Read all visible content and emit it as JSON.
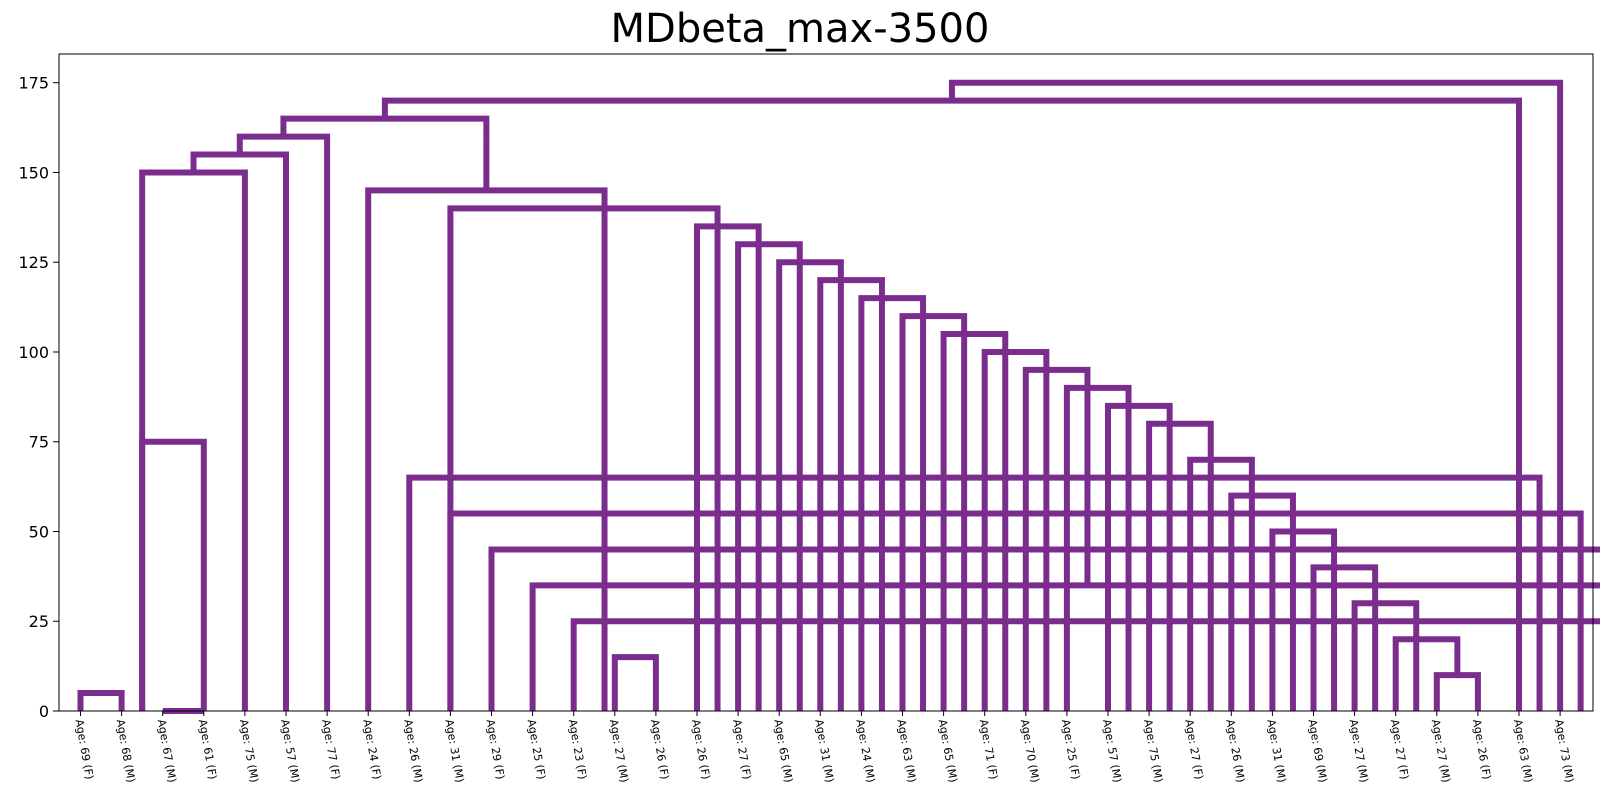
{
  "chart_data": {
    "type": "dendrogram",
    "title": "MDbeta_max-3500",
    "xlabel": "",
    "ylabel": "",
    "ylim": [
      0,
      183
    ],
    "y_ticks": [
      0,
      25,
      50,
      75,
      100,
      125,
      150,
      175
    ],
    "link_color": "#7b2d8e",
    "leaf_labels": [
      "Age: 69 (F)",
      "Age: 68 (M)",
      "Age: 67 (M)",
      "Age: 61 (F)",
      "Age: 75 (M)",
      "Age: 57 (M)",
      "Age: 77 (F)",
      "Age: 24 (F)",
      "Age: 26 (M)",
      "Age: 31 (M)",
      "Age: 29 (F)",
      "Age: 25 (F)",
      "Age: 23 (F)",
      "Age: 27 (M)",
      "Age: 26 (F)",
      "Age: 26 (F)",
      "Age: 27 (F)",
      "Age: 65 (M)",
      "Age: 31 (M)",
      "Age: 24 (M)",
      "Age: 63 (M)",
      "Age: 65 (M)",
      "Age: 71 (F)",
      "Age: 70 (M)",
      "Age: 25 (F)",
      "Age: 57 (M)",
      "Age: 75 (M)",
      "Age: 27 (F)",
      "Age: 26 (M)",
      "Age: 31 (M)",
      "Age: 69 (M)",
      "Age: 27 (M)",
      "Age: 27 (F)",
      "Age: 27 (M)",
      "Age: 26 (F)",
      "Age: 63 (M)",
      "Age: 73 (M)"
    ],
    "merges": [
      {
        "left": 0,
        "right": 1,
        "height": 5
      },
      {
        "left": 2,
        "right": 3,
        "height": 0
      },
      {
        "left": 13,
        "right": 14,
        "height": 15
      },
      {
        "left": 12,
        "right": 37.5,
        "height": 25
      },
      {
        "left": 11,
        "right": 38,
        "height": 35
      },
      {
        "left": 10,
        "right": 37.5,
        "height": 45
      },
      {
        "left": 9,
        "right": 36.5,
        "height": 55
      },
      {
        "left": 8,
        "right": 35.5,
        "height": 65
      },
      {
        "left": 33,
        "right": 34,
        "height": 10
      },
      {
        "left": 32,
        "right": 33.5,
        "height": 20
      },
      {
        "left": 31,
        "right": 32.5,
        "height": 30
      },
      {
        "left": 30,
        "right": 31.5,
        "height": 40
      },
      {
        "left": 29,
        "right": 30.5,
        "height": 50
      },
      {
        "left": 28,
        "right": 29.5,
        "height": 60
      },
      {
        "left": 27,
        "right": 28.5,
        "height": 70
      },
      {
        "left": 26,
        "right": 27.5,
        "height": 80
      },
      {
        "left": 25,
        "right": 26.5,
        "height": 85
      },
      {
        "left": 24,
        "right": 25.5,
        "height": 90
      },
      {
        "left": 23,
        "right": 24.5,
        "height": 95
      },
      {
        "left": 22,
        "right": 23.5,
        "height": 100
      },
      {
        "left": 21,
        "right": 22.5,
        "height": 105
      },
      {
        "left": 20,
        "right": 21.5,
        "height": 110
      },
      {
        "left": 19,
        "right": 20.5,
        "height": 115
      },
      {
        "left": 18,
        "right": 19.5,
        "height": 120
      },
      {
        "left": 17,
        "right": 18.5,
        "height": 125
      },
      {
        "left": 16,
        "right": 17.5,
        "height": 130
      },
      {
        "left": 15,
        "right": 16.5,
        "height": 135
      },
      {
        "left": 9,
        "right": 15.5,
        "height": 140
      },
      {
        "left": 7,
        "right": 12.75,
        "height": 145
      },
      {
        "left": 1.5,
        "right": 3,
        "height": 75
      },
      {
        "left": 1.5,
        "right": 4,
        "height": 150
      },
      {
        "left": 2.75,
        "right": 5,
        "height": 155
      },
      {
        "left": 3.875,
        "right": 6,
        "height": 160
      },
      {
        "left": 4.9375,
        "right": 9.875,
        "height": 165
      },
      {
        "left": 7.40625,
        "right": 35,
        "height": 170
      },
      {
        "left": 21.203125,
        "right": 36,
        "height": 175
      }
    ]
  }
}
